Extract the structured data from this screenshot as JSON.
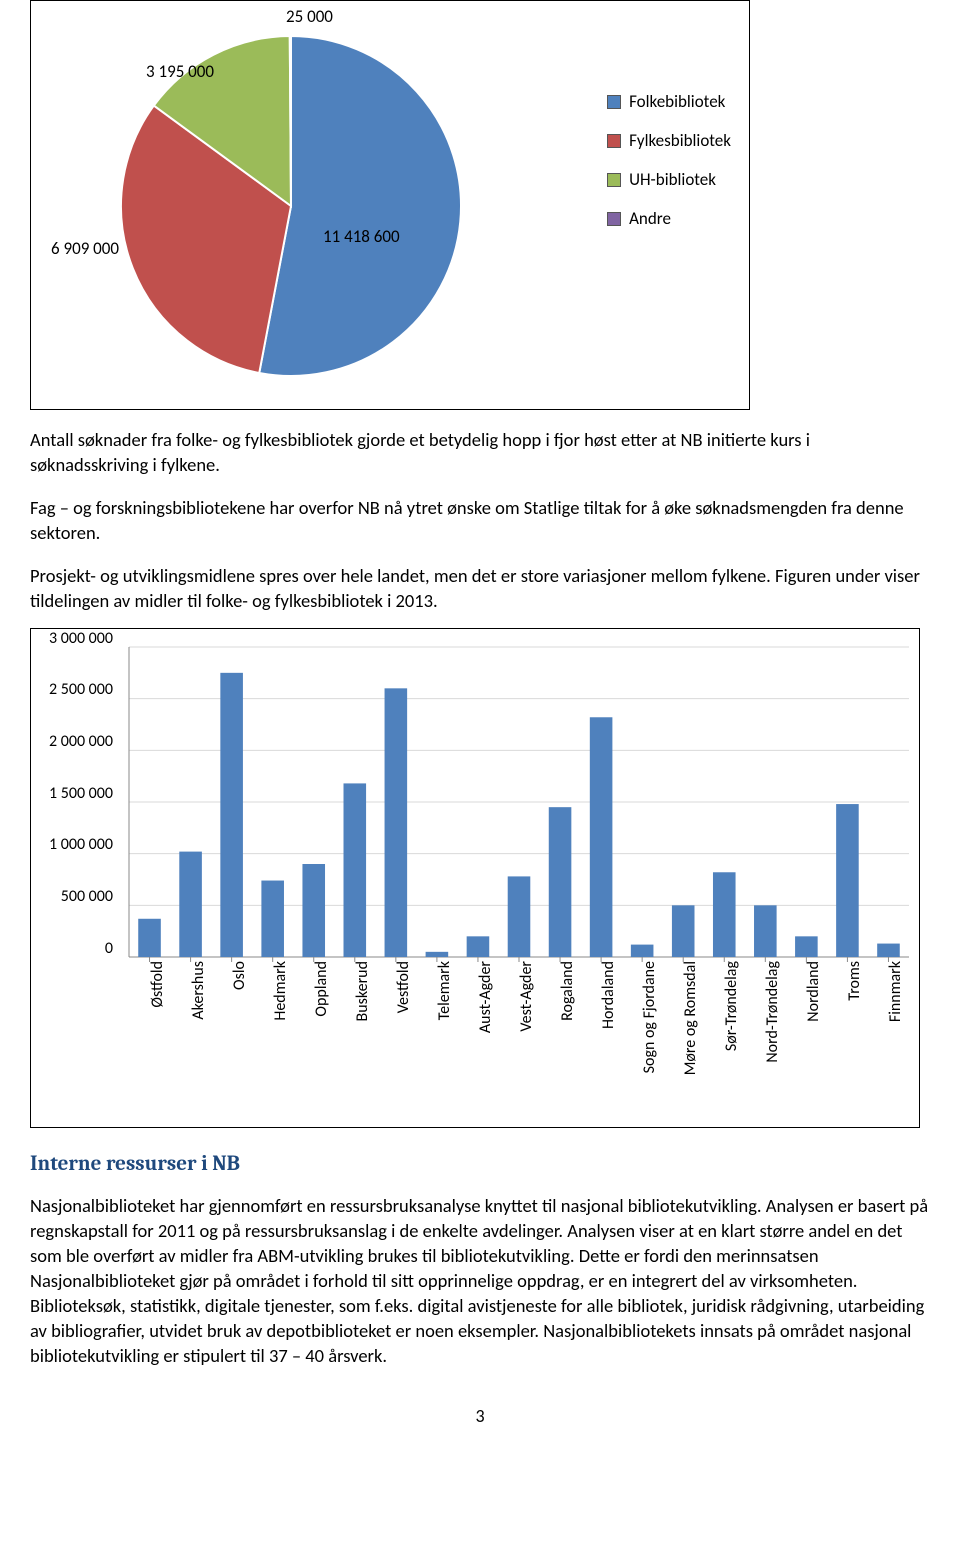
{
  "pie": {
    "type": "pie",
    "background_color": "#ffffff",
    "border_color": "#000000",
    "slices": [
      {
        "label": "Folkebibliotek",
        "value": 11418600,
        "color": "#4f81bd",
        "callout": "11 418 600"
      },
      {
        "label": "Fylkesbibliotek",
        "value": 6909000,
        "color": "#c0504d",
        "callout": "6 909 000"
      },
      {
        "label": "UH-bibliotek",
        "value": 3195000,
        "color": "#9bbb59",
        "callout": "3 195 000"
      },
      {
        "label": "Andre",
        "value": 25000,
        "color": "#8064a2",
        "callout": "25 000"
      }
    ],
    "legend_position": "right",
    "label_fontsize": 17
  },
  "paragraph1": "Antall søknader fra folke- og fylkesbibliotek gjorde et betydelig hopp i fjor høst etter at NB initierte kurs i søknadsskriving i fylkene.",
  "paragraph2": "Fag – og forskningsbibliotekene har overfor NB nå ytret ønske om Statlige tiltak for å øke søknadsmengden fra denne sektoren.",
  "paragraph3": "Prosjekt- og utviklingsmidlene spres over hele landet, men det er store variasjoner mellom fylkene. Figuren under viser tildelingen av midler til folke- og fylkesbibliotek i 2013.",
  "bar": {
    "type": "bar",
    "background_color": "#ffffff",
    "border_color": "#888888",
    "grid_color": "#d9d9d9",
    "bar_color": "#4f81bd",
    "ylim": [
      0,
      3000000
    ],
    "ytick_step": 500000,
    "ylabels": [
      "0",
      "500 000",
      "1 000 000",
      "1 500 000",
      "2 000 000",
      "2 500 000",
      "3 000 000"
    ],
    "label_fontsize": 16,
    "bar_width": 0.55,
    "categories": [
      {
        "name": "Østfold",
        "value": 370000
      },
      {
        "name": "Akershus",
        "value": 1020000
      },
      {
        "name": "Oslo",
        "value": 2750000
      },
      {
        "name": "Hedmark",
        "value": 740000
      },
      {
        "name": "Oppland",
        "value": 900000
      },
      {
        "name": "Buskerud",
        "value": 1680000
      },
      {
        "name": "Vestfold",
        "value": 2600000
      },
      {
        "name": "Telemark",
        "value": 50000
      },
      {
        "name": "Aust-Agder",
        "value": 200000
      },
      {
        "name": "Vest-Agder",
        "value": 780000
      },
      {
        "name": "Rogaland",
        "value": 1450000
      },
      {
        "name": "Hordaland",
        "value": 2320000
      },
      {
        "name": "Sogn og Fjordane",
        "value": 120000
      },
      {
        "name": "Møre og Romsdal",
        "value": 500000
      },
      {
        "name": "Sør-Trøndelag",
        "value": 820000
      },
      {
        "name": "Nord-Trøndelag",
        "value": 500000
      },
      {
        "name": "Nordland",
        "value": 200000
      },
      {
        "name": "Troms",
        "value": 1480000
      },
      {
        "name": "Finnmark",
        "value": 130000
      }
    ]
  },
  "heading": "Interne ressurser i NB",
  "paragraph4": "Nasjonalbiblioteket har gjennomført en ressursbruksanalyse knyttet til nasjonal bibliotekutvikling. Analysen er basert på regnskapstall for 2011 og på ressursbruksanslag i de enkelte avdelinger. Analysen viser at en klart større andel en det som ble overført av midler fra ABM-utvikling brukes til bibliotekutvikling. Dette er fordi den merinnsatsen Nasjonalbiblioteket gjør på området i forhold til sitt opprinnelige oppdrag, er en integrert del av virksomheten. Biblioteksøk, statistikk, digitale tjenester, som f.eks. digital avistjeneste for alle bibliotek, juridisk rådgivning, utarbeiding av bibliografier, utvidet bruk av depotbiblioteket er noen eksempler. Nasjonalbibliotekets innsats på området nasjonal bibliotekutvikling er stipulert til 37 – 40 årsverk.",
  "page_number": "3"
}
